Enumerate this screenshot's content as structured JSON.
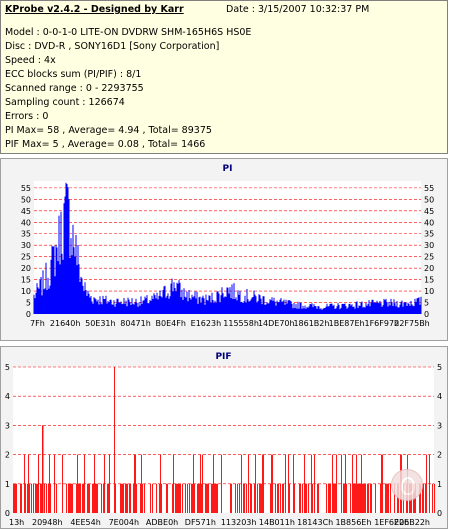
{
  "info": {
    "title": "KProbe v2.4.2 - Designed by Karr",
    "date": "Date : 3/15/2007 10:32:37 PM",
    "lines": [
      "Model : 0-0-1-0 LITE-ON DVDRW SHM-165H6S HS0E",
      "Disc : DVD-R , SONY16D1 [Sony Corporation]",
      "Speed : 4x",
      "ECC blocks sum (PI/PIF) : 8/1",
      "Scanned range : 0 - 2293755",
      "Sampling count : 126674",
      "Errors : 0",
      "PI Max= 58 , Average= 4.94 , Total= 89375",
      "PIF Max= 5 , Average= 0.08 , Total= 1466"
    ]
  },
  "colors": {
    "info_bg": "#ffffe1",
    "pi_fill": "#0000ff",
    "pif_bar": "#ff0000",
    "grid": "#ff0000",
    "title": "#00007a"
  },
  "chart_data": [
    {
      "type": "area",
      "title": "PI",
      "ylim": [
        0,
        58
      ],
      "y_ticks_left": [
        0,
        5,
        10,
        15,
        20,
        25,
        30,
        35,
        40,
        45,
        50,
        55
      ],
      "y_ticks_right": [
        0,
        5,
        10,
        15,
        20,
        25,
        30,
        35,
        40,
        45,
        50,
        55
      ],
      "x_tick_labels": [
        "7Fh",
        "21640h",
        "50E31h",
        "80471h",
        "B0E4Fh",
        "E1623h",
        "115558h",
        "14DE70h",
        "1861B2h",
        "1BE87Eh",
        "1F6F97h",
        "22F75Bh"
      ],
      "grid": true,
      "profile": [
        {
          "x": 0.0,
          "y": 10
        },
        {
          "x": 0.02,
          "y": 16
        },
        {
          "x": 0.04,
          "y": 24
        },
        {
          "x": 0.055,
          "y": 34
        },
        {
          "x": 0.07,
          "y": 46
        },
        {
          "x": 0.08,
          "y": 55
        },
        {
          "x": 0.085,
          "y": 58
        },
        {
          "x": 0.095,
          "y": 50
        },
        {
          "x": 0.105,
          "y": 40
        },
        {
          "x": 0.115,
          "y": 28
        },
        {
          "x": 0.125,
          "y": 18
        },
        {
          "x": 0.135,
          "y": 12
        },
        {
          "x": 0.15,
          "y": 9
        },
        {
          "x": 0.2,
          "y": 7
        },
        {
          "x": 0.28,
          "y": 7
        },
        {
          "x": 0.32,
          "y": 9
        },
        {
          "x": 0.35,
          "y": 14
        },
        {
          "x": 0.365,
          "y": 18
        },
        {
          "x": 0.38,
          "y": 12
        },
        {
          "x": 0.42,
          "y": 9
        },
        {
          "x": 0.45,
          "y": 8
        },
        {
          "x": 0.48,
          "y": 11
        },
        {
          "x": 0.5,
          "y": 14
        },
        {
          "x": 0.52,
          "y": 12
        },
        {
          "x": 0.55,
          "y": 10
        },
        {
          "x": 0.58,
          "y": 9
        },
        {
          "x": 0.62,
          "y": 7
        },
        {
          "x": 0.68,
          "y": 5
        },
        {
          "x": 0.75,
          "y": 4
        },
        {
          "x": 0.82,
          "y": 5
        },
        {
          "x": 0.9,
          "y": 6
        },
        {
          "x": 0.95,
          "y": 6
        },
        {
          "x": 1.0,
          "y": 7
        }
      ]
    },
    {
      "type": "bar",
      "title": "PIF",
      "ylim": [
        0,
        5
      ],
      "y_ticks_left": [
        0,
        1,
        2,
        3,
        4,
        5
      ],
      "y_ticks_right": [
        0,
        1,
        2,
        3,
        4,
        5
      ],
      "x_tick_labels": [
        "13h",
        "20948h",
        "4EE54h",
        "7E004h",
        "ADBE0h",
        "DF571h",
        "113203h",
        "14B011h",
        "18143Ch",
        "1B856Eh",
        "1EF6E0h",
        "226B22h"
      ],
      "grid": true,
      "max_points": [
        {
          "x": 0.24,
          "y": 5
        },
        {
          "x": 0.07,
          "y": 3
        }
      ]
    }
  ]
}
